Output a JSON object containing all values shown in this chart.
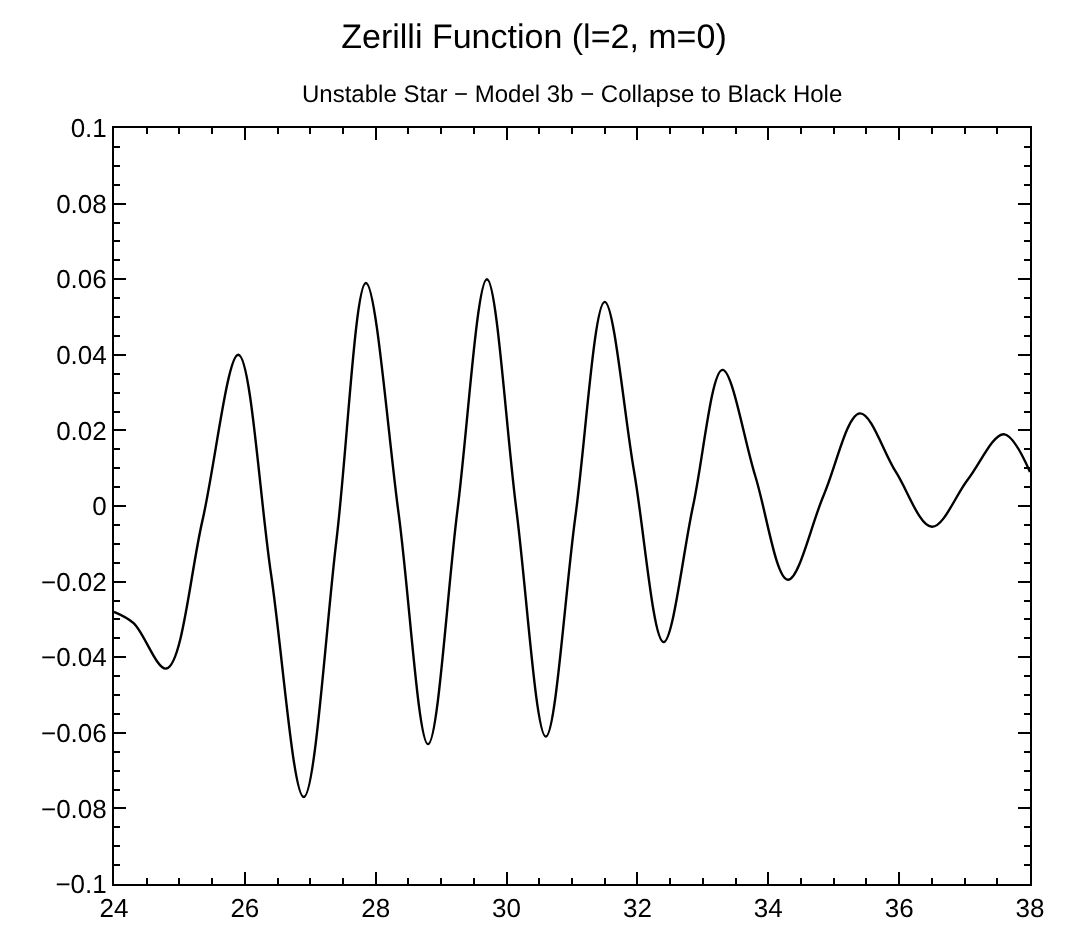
{
  "chart_data": {
    "type": "line",
    "title": "Zerilli Function (l=2, m=0)",
    "subtitle": "Unstable Star − Model 3b − Collapse to Black Hole",
    "x": [
      24,
      24.3,
      24.8,
      25.35,
      25.9,
      26.4,
      26.9,
      27.4,
      27.85,
      28.35,
      28.8,
      29.25,
      29.7,
      30.15,
      30.6,
      31.05,
      31.5,
      31.95,
      32.4,
      32.85,
      33.3,
      33.8,
      34.3,
      34.85,
      35.4,
      35.95,
      36.5,
      37.05,
      37.6,
      38
    ],
    "series": [
      {
        "color": "#000000",
        "values": [
          -0.028,
          -0.031,
          -0.043,
          -0.004,
          0.04,
          -0.018,
          -0.077,
          -0.009,
          0.059,
          -0.002,
          -0.063,
          -0.001,
          0.06,
          -0.001,
          -0.061,
          -0.003,
          0.054,
          0.009,
          -0.036,
          0.0,
          0.036,
          0.008,
          -0.0195,
          0.003,
          0.0245,
          0.009,
          -0.0055,
          0.007,
          0.019,
          0.009
        ]
      }
    ],
    "xlim": [
      24,
      38
    ],
    "xticks": [
      24,
      26,
      28,
      30,
      32,
      34,
      36,
      38
    ],
    "ylim": [
      -0.1,
      0.1
    ],
    "yticks": [
      {
        "value": -0.1,
        "label": "−0.1"
      },
      {
        "value": -0.08,
        "label": "−0.08"
      },
      {
        "value": -0.06,
        "label": "−0.06"
      },
      {
        "value": -0.04,
        "label": "−0.04"
      },
      {
        "value": -0.02,
        "label": "−0.02"
      },
      0,
      0.02,
      0.04,
      0.06,
      0.08,
      0.1
    ],
    "marker": "none",
    "line_style": "solid"
  }
}
